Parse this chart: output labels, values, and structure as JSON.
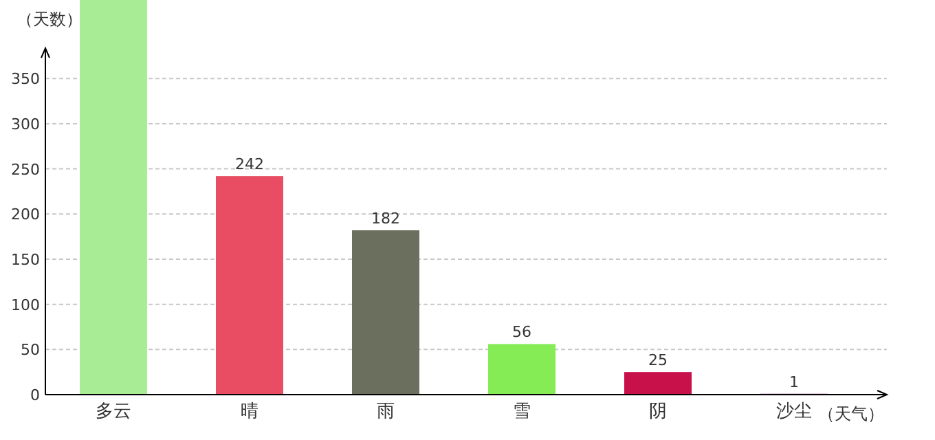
{
  "chart_data": {
    "type": "bar",
    "ylabel": "（天数）",
    "xlabel": "（天气）",
    "categories": [
      "多云",
      "晴",
      "雨",
      "雪",
      "阴",
      "沙尘"
    ],
    "values": [
      437,
      242,
      182,
      56,
      25,
      1
    ],
    "value_labels": [
      null,
      "242",
      "182",
      "56",
      "25",
      "1"
    ],
    "colors": [
      "#a8ec96",
      "#e94d63",
      "#6b6f5e",
      "#85ec55",
      "#c8104a",
      "#c050b0"
    ],
    "ylim": [
      0,
      437
    ],
    "yticks": [
      0,
      50,
      100,
      150,
      200,
      250,
      300,
      350
    ],
    "grid": "y"
  }
}
